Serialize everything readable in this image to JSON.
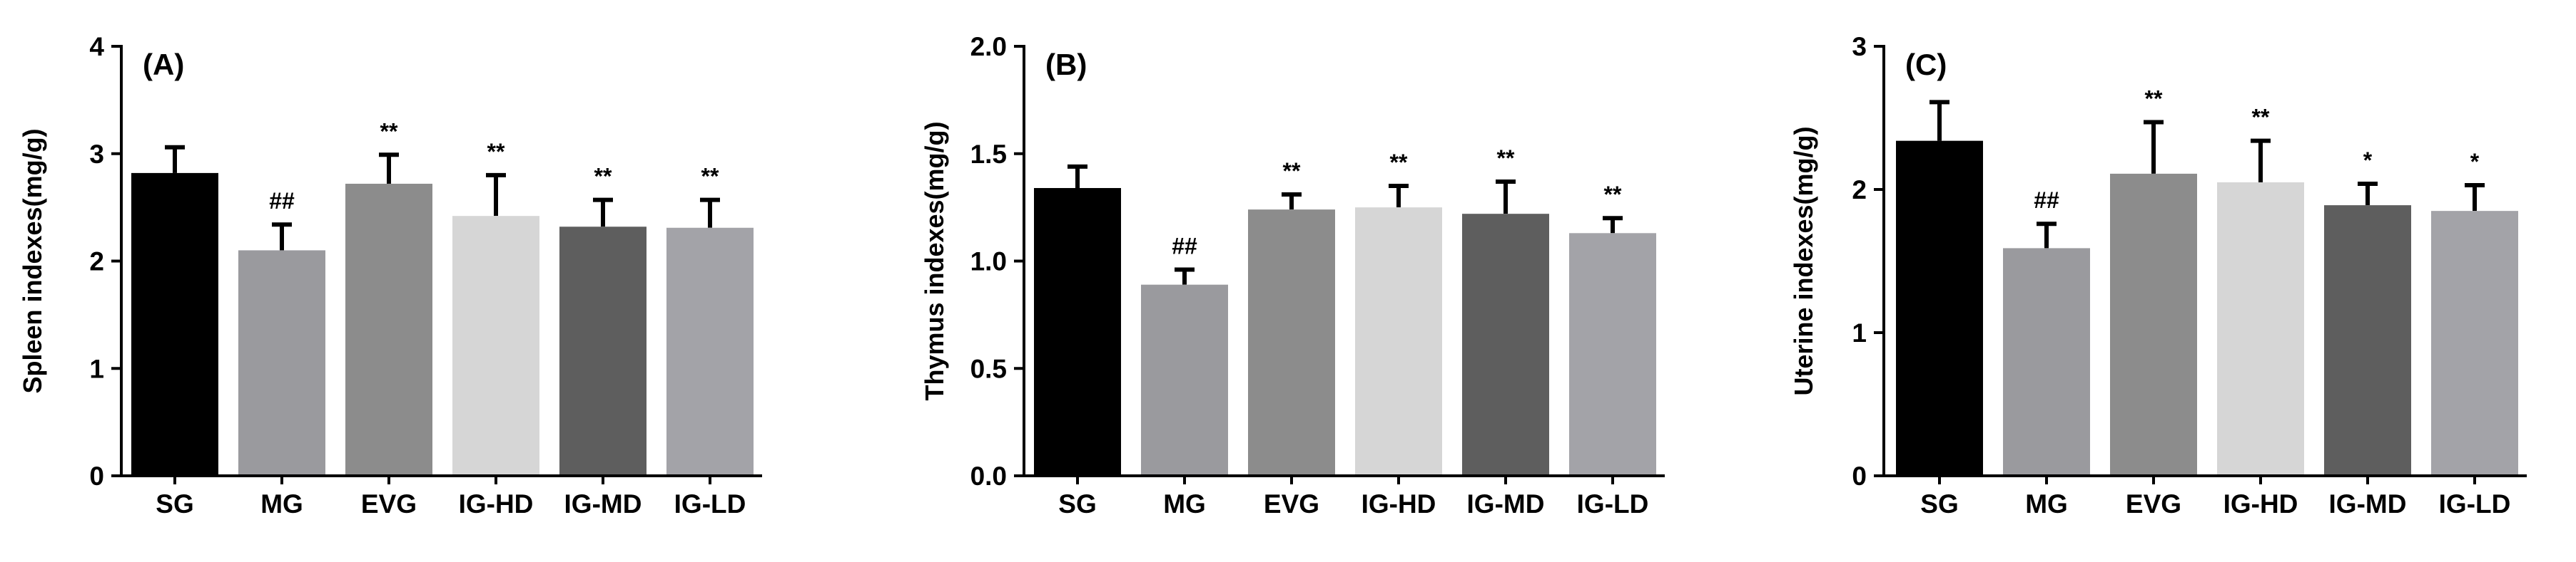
{
  "chart_data": [
    {
      "type": "bar",
      "panel_label": "(A)",
      "ylabel": "Spleen indexes(mg/g)",
      "ylim": [
        0,
        4
      ],
      "ticks": [
        "0",
        "1",
        "2",
        "3",
        "4"
      ],
      "tick_values": [
        0,
        1,
        2,
        3,
        4
      ],
      "categories": [
        "SG",
        "MG",
        "EVG",
        "IG-HD",
        "IG-MD",
        "IG-LD"
      ],
      "values": [
        2.82,
        2.1,
        2.72,
        2.42,
        2.32,
        2.31
      ],
      "errors": [
        0.24,
        0.24,
        0.27,
        0.38,
        0.25,
        0.26
      ],
      "significance": [
        "",
        "##",
        "**",
        "**",
        "**",
        "**"
      ],
      "bar_colors": [
        "#000000",
        "#9a9a9e",
        "#8c8c8c",
        "#d6d6d6",
        "#5e5e5e",
        "#a3a3a8"
      ]
    },
    {
      "type": "bar",
      "panel_label": "(B)",
      "ylabel": "Thymus indexes(mg/g)",
      "ylim": [
        0,
        2
      ],
      "ticks": [
        "0.0",
        "0.5",
        "1.0",
        "1.5",
        "2.0"
      ],
      "tick_values": [
        0,
        0.5,
        1,
        1.5,
        2
      ],
      "categories": [
        "SG",
        "MG",
        "EVG",
        "IG-HD",
        "IG-MD",
        "IG-LD"
      ],
      "values": [
        1.34,
        0.89,
        1.24,
        1.25,
        1.22,
        1.13
      ],
      "errors": [
        0.1,
        0.07,
        0.07,
        0.1,
        0.15,
        0.07
      ],
      "significance": [
        "",
        "##",
        "**",
        "**",
        "**",
        "**"
      ],
      "bar_colors": [
        "#000000",
        "#9a9a9e",
        "#8c8c8c",
        "#d6d6d6",
        "#5e5e5e",
        "#a3a3a8"
      ]
    },
    {
      "type": "bar",
      "panel_label": "(C)",
      "ylabel": "Uterine indexes(mg/g)",
      "ylim": [
        0,
        3
      ],
      "ticks": [
        "0",
        "1",
        "2",
        "3"
      ],
      "tick_values": [
        0,
        1,
        2,
        3
      ],
      "categories": [
        "SG",
        "MG",
        "EVG",
        "IG-HD",
        "IG-MD",
        "IG-LD"
      ],
      "values": [
        2.34,
        1.59,
        2.11,
        2.05,
        1.89,
        1.85
      ],
      "errors": [
        0.27,
        0.17,
        0.36,
        0.29,
        0.15,
        0.18
      ],
      "significance": [
        "",
        "##",
        "**",
        "**",
        "*",
        "*"
      ],
      "bar_colors": [
        "#000000",
        "#9a9a9e",
        "#8c8c8c",
        "#d6d6d6",
        "#5e5e5e",
        "#a3a3a8"
      ]
    }
  ]
}
